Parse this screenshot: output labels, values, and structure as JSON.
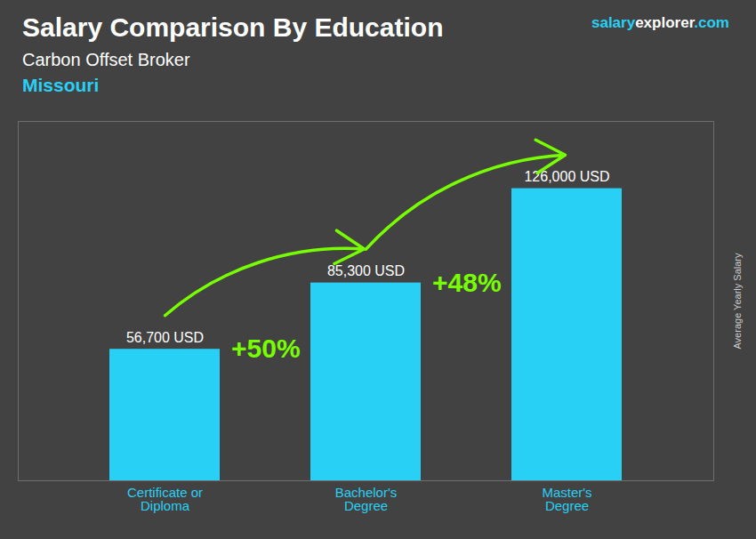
{
  "chart_data": {
    "type": "bar",
    "title": "Salary Comparison By Education",
    "subtitle": "Carbon Offset Broker",
    "location": "Missouri",
    "watermark": [
      "salary",
      "explorer",
      ".com"
    ],
    "ylabel": "Average Yearly Salary",
    "categories": [
      "Certificate or\nDiploma",
      "Bachelor's\nDegree",
      "Master's\nDegree"
    ],
    "values": [
      56700,
      85300,
      126000
    ],
    "value_labels": [
      "56,700 USD",
      "85,300 USD",
      "126,000 USD"
    ],
    "data_labels": true,
    "color": "#29d0f5",
    "ylim": [
      0,
      155000
    ],
    "yticks": [],
    "tick_labels": "x",
    "grid": false,
    "annotations": [
      {
        "text": "+50%",
        "from": "Certificate or\nDiploma",
        "to": "Bachelor's\nDegree",
        "color": "#77ff00"
      },
      {
        "text": "+48%",
        "from": "Bachelor's\nDegree",
        "to": "Master's\nDegree",
        "color": "#77ff00"
      }
    ]
  }
}
